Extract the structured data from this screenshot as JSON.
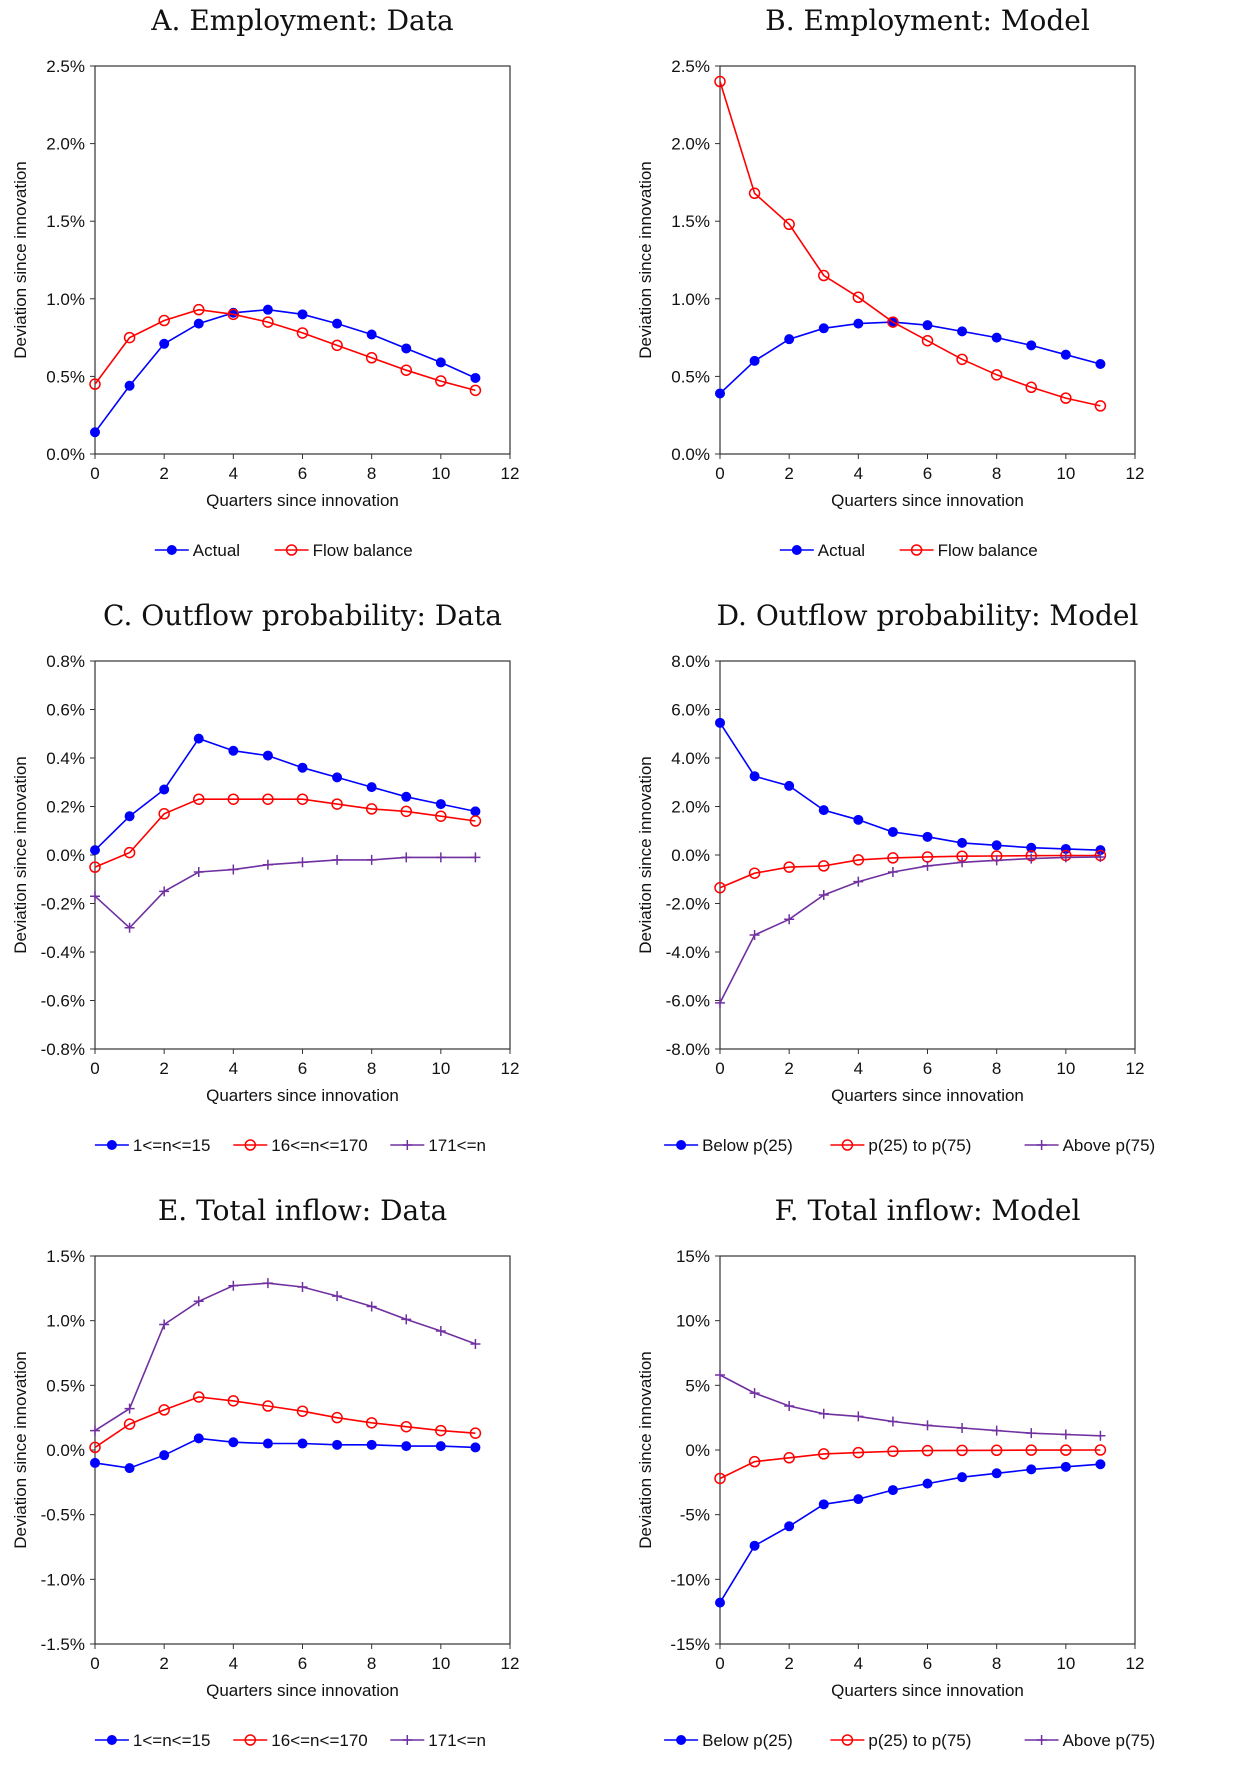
{
  "colors": {
    "blue": "#0000ff",
    "red": "#ff0000",
    "purple": "#7030a0",
    "axis": "#333333"
  },
  "chart_data": [
    {
      "id": "A",
      "type": "line",
      "title": "A. Employment: Data",
      "xlabel": "Quarters since innovation",
      "ylabel": "Deviation since innovation",
      "xlim": [
        0,
        12
      ],
      "xticks": [
        0,
        2,
        4,
        6,
        8,
        10,
        12
      ],
      "ylim": [
        0,
        2.5
      ],
      "yticks": [
        0,
        0.5,
        1.0,
        1.5,
        2.0,
        2.5
      ],
      "ytick_labels": [
        "0.0%",
        "0.5%",
        "1.0%",
        "1.5%",
        "2.0%",
        "2.5%"
      ],
      "grid": false,
      "legend": "bottom",
      "x": [
        0,
        1,
        2,
        3,
        4,
        5,
        6,
        7,
        8,
        9,
        10,
        11
      ],
      "series": [
        {
          "name": "Actual",
          "color": "#0000ff",
          "marker": "dot",
          "values": [
            0.14,
            0.44,
            0.71,
            0.84,
            0.91,
            0.93,
            0.9,
            0.84,
            0.77,
            0.68,
            0.59,
            0.49
          ]
        },
        {
          "name": "Flow balance",
          "color": "#ff0000",
          "marker": "circle",
          "values": [
            0.45,
            0.75,
            0.86,
            0.93,
            0.9,
            0.85,
            0.78,
            0.7,
            0.62,
            0.54,
            0.47,
            0.41
          ]
        }
      ]
    },
    {
      "id": "B",
      "type": "line",
      "title": "B. Employment: Model",
      "xlabel": "Quarters since innovation",
      "ylabel": "Deviation since innovation",
      "xlim": [
        0,
        12
      ],
      "xticks": [
        0,
        2,
        4,
        6,
        8,
        10,
        12
      ],
      "ylim": [
        0,
        2.5
      ],
      "yticks": [
        0,
        0.5,
        1.0,
        1.5,
        2.0,
        2.5
      ],
      "ytick_labels": [
        "0.0%",
        "0.5%",
        "1.0%",
        "1.5%",
        "2.0%",
        "2.5%"
      ],
      "grid": false,
      "legend": "bottom",
      "x": [
        0,
        1,
        2,
        3,
        4,
        5,
        6,
        7,
        8,
        9,
        10,
        11
      ],
      "series": [
        {
          "name": "Actual",
          "color": "#0000ff",
          "marker": "dot",
          "values": [
            0.39,
            0.6,
            0.74,
            0.81,
            0.84,
            0.85,
            0.83,
            0.79,
            0.75,
            0.7,
            0.64,
            0.58
          ]
        },
        {
          "name": "Flow balance",
          "color": "#ff0000",
          "marker": "circle",
          "values": [
            2.4,
            1.68,
            1.48,
            1.15,
            1.01,
            0.85,
            0.73,
            0.61,
            0.51,
            0.43,
            0.36,
            0.31
          ]
        }
      ]
    },
    {
      "id": "C",
      "type": "line",
      "title": "C. Outflow probability: Data",
      "xlabel": "Quarters since innovation",
      "ylabel": "Deviation since innovation",
      "xlim": [
        0,
        12
      ],
      "xticks": [
        0,
        2,
        4,
        6,
        8,
        10,
        12
      ],
      "ylim": [
        -0.8,
        0.8
      ],
      "yticks": [
        -0.8,
        -0.6,
        -0.4,
        -0.2,
        0,
        0.2,
        0.4,
        0.6,
        0.8
      ],
      "ytick_labels": [
        "-0.8%",
        "-0.6%",
        "-0.4%",
        "-0.2%",
        "0.0%",
        "0.2%",
        "0.4%",
        "0.6%",
        "0.8%"
      ],
      "grid": false,
      "legend": "bottom",
      "x": [
        0,
        1,
        2,
        3,
        4,
        5,
        6,
        7,
        8,
        9,
        10,
        11
      ],
      "series": [
        {
          "name": "1<=n<=15",
          "color": "#0000ff",
          "marker": "dot",
          "values": [
            0.02,
            0.16,
            0.27,
            0.48,
            0.43,
            0.41,
            0.36,
            0.32,
            0.28,
            0.24,
            0.21,
            0.18
          ]
        },
        {
          "name": "16<=n<=170",
          "color": "#ff0000",
          "marker": "circle",
          "values": [
            -0.05,
            0.01,
            0.17,
            0.23,
            0.23,
            0.23,
            0.23,
            0.21,
            0.19,
            0.18,
            0.16,
            0.14
          ]
        },
        {
          "name": "171<=n",
          "color": "#7030a0",
          "marker": "plus",
          "values": [
            -0.17,
            -0.3,
            -0.15,
            -0.07,
            -0.06,
            -0.04,
            -0.03,
            -0.02,
            -0.02,
            -0.01,
            -0.01,
            -0.01
          ]
        }
      ]
    },
    {
      "id": "D",
      "type": "line",
      "title": "D. Outflow probability: Model",
      "xlabel": "Quarters since innovation",
      "ylabel": "Deviation since innovation",
      "xlim": [
        0,
        12
      ],
      "xticks": [
        0,
        2,
        4,
        6,
        8,
        10,
        12
      ],
      "ylim": [
        -8,
        8
      ],
      "yticks": [
        -8,
        -6,
        -4,
        -2,
        0,
        2,
        4,
        6,
        8
      ],
      "ytick_labels": [
        "-8.0%",
        "-6.0%",
        "-4.0%",
        "-2.0%",
        "0.0%",
        "2.0%",
        "4.0%",
        "6.0%",
        "8.0%"
      ],
      "grid": false,
      "legend": "bottom",
      "x": [
        0,
        1,
        2,
        3,
        4,
        5,
        6,
        7,
        8,
        9,
        10,
        11
      ],
      "series": [
        {
          "name": "Below p(25)",
          "color": "#0000ff",
          "marker": "dot",
          "values": [
            5.45,
            3.25,
            2.85,
            1.85,
            1.45,
            0.95,
            0.75,
            0.5,
            0.4,
            0.3,
            0.25,
            0.2
          ]
        },
        {
          "name": "p(25) to p(75)",
          "color": "#ff0000",
          "marker": "circle",
          "values": [
            -1.35,
            -0.75,
            -0.5,
            -0.45,
            -0.2,
            -0.12,
            -0.08,
            -0.05,
            -0.04,
            -0.03,
            -0.02,
            -0.02
          ]
        },
        {
          "name": "Above p(75)",
          "color": "#7030a0",
          "marker": "plus",
          "values": [
            -6.1,
            -3.3,
            -2.65,
            -1.65,
            -1.1,
            -0.7,
            -0.45,
            -0.3,
            -0.22,
            -0.15,
            -0.1,
            -0.08
          ]
        }
      ]
    },
    {
      "id": "E",
      "type": "line",
      "title": "E. Total inflow: Data",
      "xlabel": "Quarters since innovation",
      "ylabel": "Deviation since innovation",
      "xlim": [
        0,
        12
      ],
      "xticks": [
        0,
        2,
        4,
        6,
        8,
        10,
        12
      ],
      "ylim": [
        -1.5,
        1.5
      ],
      "yticks": [
        -1.5,
        -1.0,
        -0.5,
        0,
        0.5,
        1.0,
        1.5
      ],
      "ytick_labels": [
        "-1.5%",
        "-1.0%",
        "-0.5%",
        "0.0%",
        "0.5%",
        "1.0%",
        "1.5%"
      ],
      "grid": false,
      "legend": "bottom",
      "x": [
        0,
        1,
        2,
        3,
        4,
        5,
        6,
        7,
        8,
        9,
        10,
        11
      ],
      "series": [
        {
          "name": "1<=n<=15",
          "color": "#0000ff",
          "marker": "dot",
          "values": [
            -0.1,
            -0.14,
            -0.04,
            0.09,
            0.06,
            0.05,
            0.05,
            0.04,
            0.04,
            0.03,
            0.03,
            0.02
          ]
        },
        {
          "name": "16<=n<=170",
          "color": "#ff0000",
          "marker": "circle",
          "values": [
            0.02,
            0.2,
            0.31,
            0.41,
            0.38,
            0.34,
            0.3,
            0.25,
            0.21,
            0.18,
            0.15,
            0.13
          ]
        },
        {
          "name": "171<=n",
          "color": "#7030a0",
          "marker": "plus",
          "values": [
            0.15,
            0.32,
            0.97,
            1.15,
            1.27,
            1.29,
            1.26,
            1.19,
            1.11,
            1.01,
            0.92,
            0.82
          ]
        }
      ]
    },
    {
      "id": "F",
      "type": "line",
      "title": "F. Total inflow: Model",
      "xlabel": "Quarters since innovation",
      "ylabel": "Deviation since innovation",
      "xlim": [
        0,
        12
      ],
      "xticks": [
        0,
        2,
        4,
        6,
        8,
        10,
        12
      ],
      "ylim": [
        -15,
        15
      ],
      "yticks": [
        -15,
        -10,
        -5,
        0,
        5,
        10,
        15
      ],
      "ytick_labels": [
        "-15%",
        "-10%",
        "-5%",
        "0%",
        "5%",
        "10%",
        "15%"
      ],
      "grid": false,
      "legend": "bottom",
      "x": [
        0,
        1,
        2,
        3,
        4,
        5,
        6,
        7,
        8,
        9,
        10,
        11
      ],
      "series": [
        {
          "name": "Below p(25)",
          "color": "#0000ff",
          "marker": "dot",
          "values": [
            -11.8,
            -7.4,
            -5.9,
            -4.2,
            -3.8,
            -3.1,
            -2.6,
            -2.1,
            -1.8,
            -1.5,
            -1.3,
            -1.1
          ]
        },
        {
          "name": "p(25) to p(75)",
          "color": "#ff0000",
          "marker": "circle",
          "values": [
            -2.2,
            -0.9,
            -0.6,
            -0.3,
            -0.2,
            -0.1,
            -0.05,
            -0.03,
            -0.02,
            -0.01,
            -0.01,
            0.0
          ]
        },
        {
          "name": "Above p(75)",
          "color": "#7030a0",
          "marker": "plus",
          "values": [
            5.8,
            4.4,
            3.4,
            2.8,
            2.6,
            2.2,
            1.9,
            1.7,
            1.5,
            1.3,
            1.2,
            1.1
          ]
        }
      ]
    }
  ]
}
